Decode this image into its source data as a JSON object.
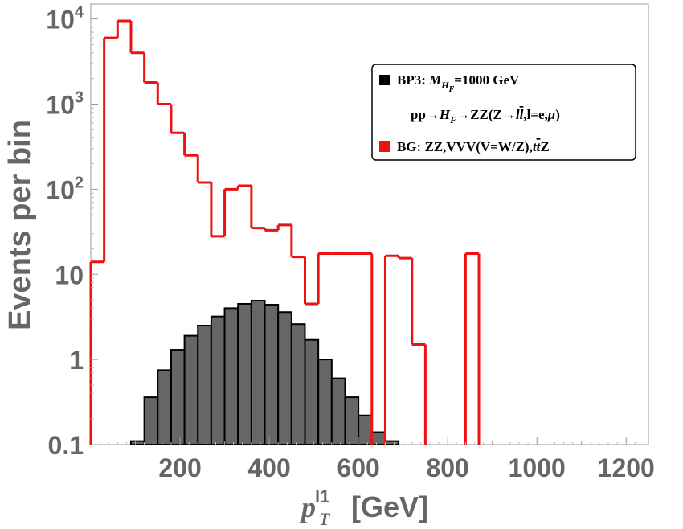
{
  "chart_data": {
    "type": "histogram",
    "title": "",
    "xlabel": "p_T^{l1} [GeV]",
    "xlabel_parts": {
      "main": "p",
      "sub": "T",
      "sup": "l1",
      "unit": "[GeV]"
    },
    "ylabel": "Events per bin",
    "xlim": [
      0,
      1250
    ],
    "ylim": [
      0.1,
      15000
    ],
    "yscale": "log",
    "bin_width": 30,
    "x_ticks": [
      200,
      400,
      600,
      800,
      1000,
      1200
    ],
    "x_tick_labels": [
      "200",
      "400",
      "600",
      "800",
      "1000",
      "1200"
    ],
    "y_ticks": [
      {
        "value": 0.1,
        "label": "0.1"
      },
      {
        "value": 1,
        "label": "1"
      },
      {
        "value": 10,
        "label": "10"
      },
      {
        "value": 100,
        "label": "10",
        "exp": "2"
      },
      {
        "value": 1000,
        "label": "10",
        "exp": "3"
      },
      {
        "value": 10000,
        "label": "10",
        "exp": "4"
      }
    ],
    "series": [
      {
        "name": "BP3: M_{H_F}=1000 GeV, pp→H_F→ZZ(Z→l l̄, l=e,μ)",
        "style": "filled",
        "color": "#666666",
        "edge_color": "#000000",
        "bins": [
          [
            90,
            0.11
          ],
          [
            120,
            0.36
          ],
          [
            150,
            0.75
          ],
          [
            180,
            1.3
          ],
          [
            210,
            1.9
          ],
          [
            240,
            2.5
          ],
          [
            270,
            3.2
          ],
          [
            300,
            4.0
          ],
          [
            330,
            4.5
          ],
          [
            360,
            4.9
          ],
          [
            390,
            4.4
          ],
          [
            420,
            3.6
          ],
          [
            450,
            2.6
          ],
          [
            480,
            1.7
          ],
          [
            510,
            1.0
          ],
          [
            540,
            0.6
          ],
          [
            570,
            0.36
          ],
          [
            600,
            0.22
          ],
          [
            630,
            0.14
          ],
          [
            660,
            0.11
          ]
        ]
      },
      {
        "name": "BG: ZZ,VVV(V=W/Z),t t̄ Z",
        "style": "step",
        "color": "#ee1111",
        "bins": [
          [
            0,
            14
          ],
          [
            30,
            6000
          ],
          [
            60,
            9500
          ],
          [
            90,
            4000
          ],
          [
            120,
            1800
          ],
          [
            150,
            1000
          ],
          [
            180,
            460
          ],
          [
            210,
            250
          ],
          [
            240,
            120
          ],
          [
            270,
            28
          ],
          [
            300,
            100
          ],
          [
            330,
            110
          ],
          [
            360,
            35
          ],
          [
            390,
            33
          ],
          [
            420,
            38
          ],
          [
            450,
            16
          ],
          [
            480,
            4.5
          ],
          [
            510,
            17.5
          ],
          [
            540,
            17.5
          ],
          [
            570,
            17.5
          ],
          [
            600,
            17.5
          ],
          [
            630,
            0
          ],
          [
            660,
            16.5
          ],
          [
            690,
            15.5
          ],
          [
            720,
            1.5
          ],
          [
            750,
            0
          ],
          [
            780,
            0
          ],
          [
            810,
            0
          ],
          [
            840,
            17.5
          ]
        ]
      }
    ],
    "legend": {
      "position": "top-right",
      "entries": [
        {
          "color": "#000000",
          "parts": [
            {
              "t": "BP3: "
            },
            {
              "t": "M",
              "i": true
            },
            {
              "t": "H",
              "i": true,
              "sub": true
            },
            {
              "t": "F",
              "i": true,
              "subsub": true
            },
            {
              "t": "=1000 GeV"
            }
          ]
        },
        {
          "color": null,
          "indent": true,
          "parts": [
            {
              "t": "pp→"
            },
            {
              "t": "H",
              "i": true
            },
            {
              "t": "F",
              "i": true,
              "sub": true
            },
            {
              "t": "→ZZ(Z→"
            },
            {
              "t": "l",
              "i": true
            },
            {
              "t": "l",
              "i": true,
              "bar": true
            },
            {
              "t": ",l=e,"
            },
            {
              "t": "μ",
              "i": true
            },
            {
              "t": ")"
            }
          ]
        },
        {
          "color": "#ee1111",
          "parts": [
            {
              "t": "BG: ZZ,VVV(V=W/Z),"
            },
            {
              "t": "t",
              "i": true
            },
            {
              "t": "t",
              "i": true,
              "bar": true
            },
            {
              "t": "Z"
            }
          ]
        }
      ]
    }
  }
}
